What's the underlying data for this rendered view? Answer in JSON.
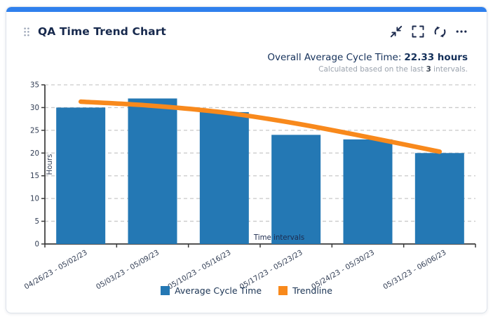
{
  "card": {
    "accent_color": "#2f80ed"
  },
  "header": {
    "title": "QA Time Trend Chart"
  },
  "summary": {
    "label": "Overall Average Cycle Time:",
    "value": "22.33 hours",
    "note_prefix": "Calculated based on the last ",
    "note_value": "3",
    "note_suffix": " intervals."
  },
  "chart_data": {
    "type": "bar",
    "categories": [
      "04/26/23 - 05/02/23",
      "05/03/23 - 05/09/23",
      "05/10/23 - 05/16/23",
      "05/17/23 - 05/23/23",
      "05/24/23 - 05/30/23",
      "05/31/23 - 06/06/23"
    ],
    "series": [
      {
        "name": "Average Cycle Time",
        "type": "bar",
        "color": "#2478b4",
        "values": [
          30,
          32,
          29,
          24,
          23,
          20
        ]
      },
      {
        "name": "Trendline",
        "type": "line",
        "color": "#f8891c",
        "values": [
          31.3,
          30.4,
          28.9,
          26.5,
          23.5,
          20.3
        ]
      }
    ],
    "title": "",
    "xlabel": "Time intervals",
    "ylabel": "Hours",
    "ylim": [
      0,
      35
    ],
    "ytick_step": 5,
    "grid": "dashed-horizontal",
    "legend_position": "bottom",
    "x_label_rotation": -30
  }
}
